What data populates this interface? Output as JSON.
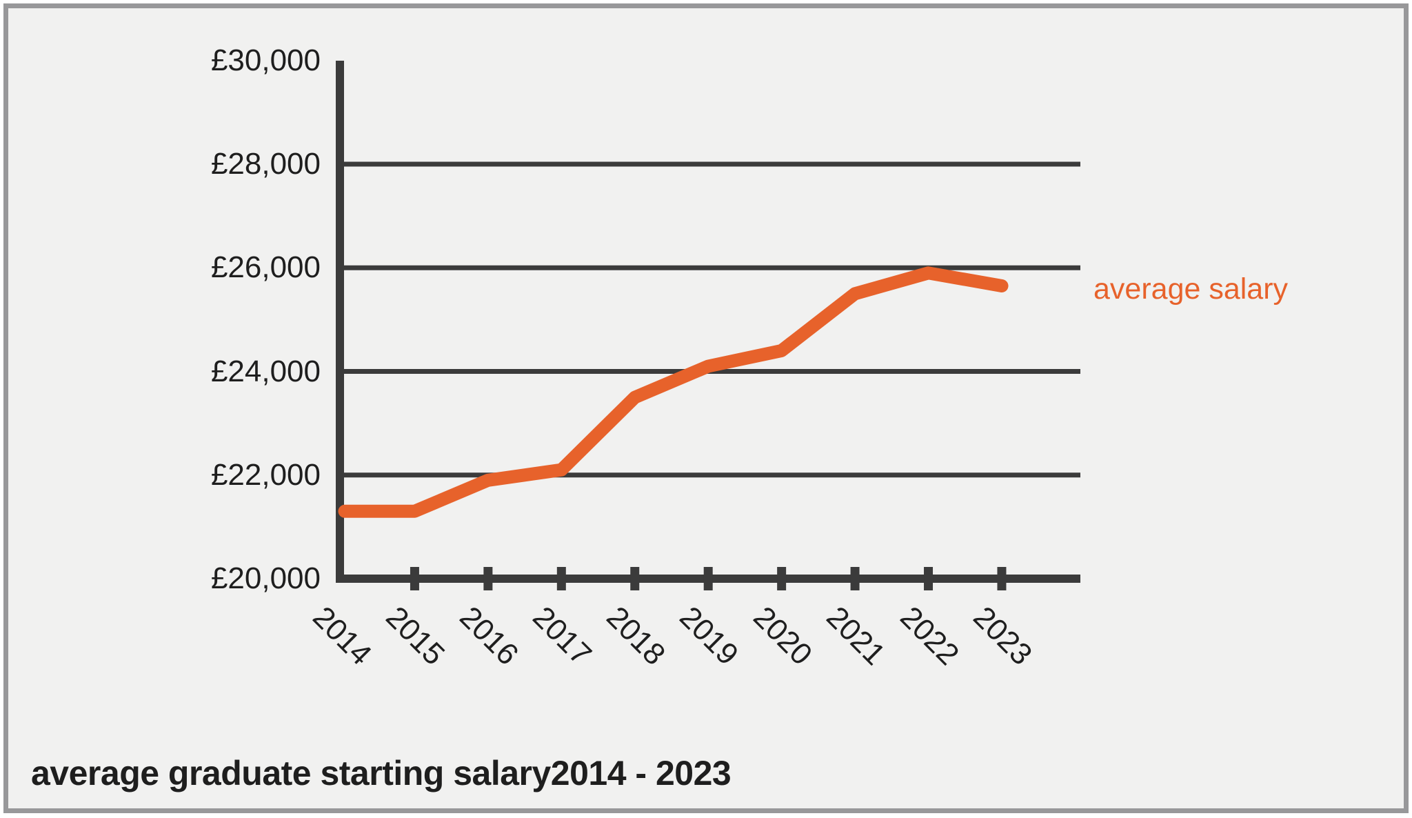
{
  "colors": {
    "background": "#f1f1f0",
    "frame_border": "#98989a",
    "axis": "#3b3b3b",
    "text": "#1e1e1e",
    "series_orange": "#e7622b"
  },
  "chart_data": {
    "type": "line",
    "title": "average graduate starting salary2014 - 2023",
    "categories": [
      "2014",
      "2015",
      "2016",
      "2017",
      "2018",
      "2019",
      "2020",
      "2021",
      "2022",
      "2023"
    ],
    "series": [
      {
        "name": "average salary",
        "color": "#e7622b",
        "values": [
          21300,
          21300,
          21900,
          22100,
          23500,
          24100,
          24400,
          25500,
          25900,
          25650
        ]
      }
    ],
    "xlabel": "",
    "ylabel": "",
    "ylim": [
      20000,
      30000
    ],
    "yticks": [
      20000,
      22000,
      24000,
      26000,
      28000,
      30000
    ],
    "ytick_labels": [
      "£20,000",
      "£22,000",
      "£24,000",
      "£26,000",
      "£28,000",
      "£30,000"
    ],
    "grid": "horizontal gridlines at 22000-28000, no gridline at 30000",
    "legend_position": "right of last data point",
    "x_tick_style": "ticks on x-axis between/after year labels, labels rotated 45deg",
    "currency": "GBP"
  }
}
